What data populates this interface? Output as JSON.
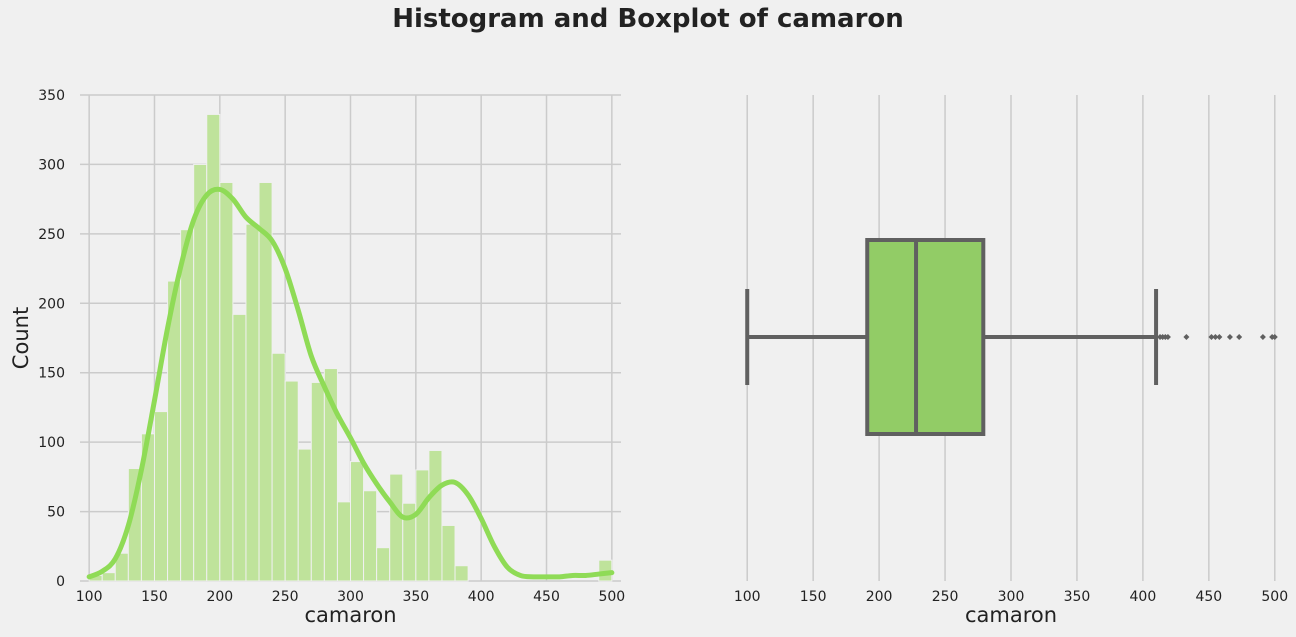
{
  "figure": {
    "title": "Histogram and Boxplot of camaron",
    "colors": {
      "background": "#f0f0f0",
      "grid": "#cbcbcb",
      "bar_fill": "#bfe39b",
      "bar_edge": "#f0f0f0",
      "kde": "#8fdb56",
      "box_fill": "#92cc66",
      "box_edge": "#606060"
    }
  },
  "chart_data": [
    {
      "type": "bar",
      "subtype": "histogram_with_kde",
      "xlabel": "camaron",
      "ylabel": "Count",
      "xlim": [
        93,
        507
      ],
      "ylim": [
        0,
        350
      ],
      "xticks": [
        100,
        150,
        200,
        250,
        300,
        350,
        400,
        450,
        500
      ],
      "yticks": [
        0,
        50,
        100,
        150,
        200,
        250,
        300,
        350
      ],
      "grid": true,
      "bin_start": 100,
      "bin_width": 10,
      "counts": [
        4,
        6,
        20,
        81,
        106,
        122,
        216,
        253,
        300,
        336,
        287,
        192,
        257,
        287,
        164,
        144,
        95,
        143,
        153,
        57,
        86,
        65,
        24,
        77,
        56,
        80,
        94,
        40,
        11,
        0,
        0,
        0,
        0,
        0,
        0,
        0,
        0,
        0,
        0,
        15
      ],
      "kde_x": [
        100,
        110,
        120,
        130,
        140,
        150,
        160,
        170,
        180,
        190,
        200,
        210,
        220,
        230,
        240,
        250,
        260,
        270,
        280,
        290,
        300,
        310,
        320,
        330,
        340,
        350,
        360,
        370,
        380,
        390,
        400,
        410,
        420,
        430,
        440,
        450,
        460,
        470,
        480,
        490,
        500
      ],
      "kde_y": [
        3,
        7,
        16,
        40,
        80,
        130,
        182,
        226,
        260,
        278,
        282,
        275,
        262,
        254,
        245,
        225,
        195,
        162,
        140,
        120,
        103,
        85,
        70,
        57,
        46,
        48,
        60,
        69,
        71,
        62,
        45,
        25,
        10,
        4,
        3,
        3,
        3,
        4,
        4,
        5,
        6
      ]
    },
    {
      "type": "box",
      "xlabel": "camaron",
      "xlim": [
        93,
        507
      ],
      "xticks": [
        100,
        150,
        200,
        250,
        300,
        350,
        400,
        450,
        500
      ],
      "grid": true,
      "whisker_low": 100,
      "q1": 191,
      "median": 228,
      "q3": 279,
      "whisker_high": 410,
      "outliers": [
        413,
        415,
        417,
        419,
        433,
        452,
        455,
        458,
        466,
        473,
        491,
        498,
        500
      ]
    }
  ]
}
